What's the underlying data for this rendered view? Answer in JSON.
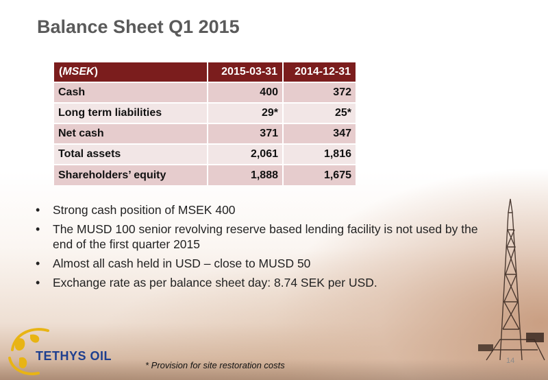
{
  "slide": {
    "title": "Balance Sheet Q1 2015",
    "page_number": "14"
  },
  "table": {
    "header": {
      "label_open": "(",
      "label_unit": "MSEK",
      "label_close": ")",
      "col1": "2015-03-31",
      "col2": "2014-12-31"
    },
    "rows": [
      {
        "label": "Cash",
        "col1": "400",
        "col2": "372"
      },
      {
        "label": "Long term liabilities",
        "col1": "29*",
        "col2": "25*"
      },
      {
        "label": "Net cash",
        "col1": "371",
        "col2": "347"
      },
      {
        "label": "Total assets",
        "col1": "2,061",
        "col2": "1,816"
      },
      {
        "label": "Shareholders’ equity",
        "col1": "1,888",
        "col2": "1,675"
      }
    ]
  },
  "bullets": [
    "Strong cash position of MSEK 400",
    "The MUSD 100 senior revolving reserve based lending facility is not used by the end of the first quarter 2015",
    "Almost all cash held in USD – close to MUSD 50",
    "Exchange rate as per balance sheet day: 8.74 SEK per USD."
  ],
  "bullet_glyph": "•",
  "footnote": "* Provision for site restoration costs",
  "logo": {
    "text": "TETHYS OIL"
  },
  "colors": {
    "header_bg": "#7b1d1d",
    "row_dark": "#e6cccd",
    "row_light": "#f2e6e6",
    "title": "#5a5a5a",
    "logo_blue": "#1e3f8f",
    "logo_gold": "#e8b414"
  }
}
